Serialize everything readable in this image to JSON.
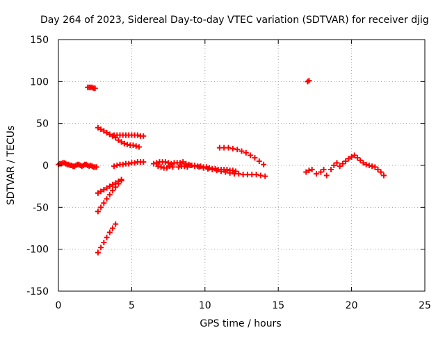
{
  "chart_data": {
    "type": "scatter",
    "title": "Day 264 of 2023, Sidereal Day-to-day VTEC variation (SDTVAR) for receiver djig",
    "xlabel": "GPS time / hours",
    "ylabel": "SDTVAR / TECUs",
    "xlim": [
      0,
      25
    ],
    "ylim": [
      -150,
      150
    ],
    "xticks": [
      "0",
      "5",
      "10",
      "15",
      "20",
      "25"
    ],
    "yticks": [
      "150",
      "100",
      "50",
      "0",
      "-50",
      "-100",
      "-150"
    ],
    "grid": true,
    "marker": "plus",
    "color": "#ff0000",
    "series": [
      {
        "x": [
          0.0,
          0.1,
          0.2,
          0.3,
          0.4,
          0.5,
          0.6,
          0.7,
          0.8,
          0.9,
          1.0,
          1.1,
          1.2,
          1.3,
          1.4,
          1.5,
          1.6,
          1.7,
          1.8,
          1.9,
          2.0,
          2.1,
          2.2,
          2.3,
          2.4,
          2.5,
          2.6,
          2.0,
          2.1,
          2.2,
          2.3,
          2.4,
          2.5,
          2.7,
          2.9,
          3.1,
          3.3,
          3.5,
          3.7,
          3.9,
          4.1,
          4.3,
          4.5,
          4.7,
          4.9,
          5.1,
          5.3,
          5.5,
          3.8,
          4.0,
          4.2,
          4.4,
          4.6,
          4.8,
          5.0,
          5.2,
          5.4,
          5.6,
          5.8,
          2.7,
          2.9,
          3.1,
          3.3,
          3.5,
          3.7,
          3.9,
          4.1,
          4.3,
          2.7,
          2.9,
          3.1,
          3.3,
          3.5,
          3.7,
          3.9,
          4.1,
          4.3,
          2.7,
          2.9,
          3.1,
          3.3,
          3.5,
          3.7,
          3.9,
          3.8,
          4.0,
          4.2,
          4.4,
          4.6,
          4.8,
          5.0,
          5.2,
          5.4,
          5.6,
          5.8,
          6.5,
          6.7,
          6.9,
          7.1,
          7.3,
          7.5,
          7.7,
          7.9,
          8.1,
          8.3,
          8.5,
          8.7,
          8.9,
          9.1,
          9.3,
          9.5,
          9.7,
          9.9,
          10.1,
          10.3,
          10.5,
          10.7,
          10.9,
          11.1,
          11.3,
          11.5,
          11.7,
          11.9,
          12.1,
          6.8,
          7.0,
          7.2,
          7.4,
          7.6,
          7.8,
          8.2,
          8.4,
          8.6,
          8.8,
          9.0,
          9.3,
          9.6,
          9.9,
          10.2,
          10.5,
          10.8,
          11.1,
          11.4,
          11.7,
          12.0,
          12.3,
          12.6,
          12.9,
          13.2,
          13.5,
          13.8,
          14.1,
          11.0,
          11.3,
          11.6,
          11.9,
          12.2,
          12.5,
          12.8,
          13.1,
          13.4,
          13.7,
          14.0,
          17.0,
          17.1,
          16.9,
          17.1,
          17.3,
          17.6,
          17.9,
          18.1,
          18.3,
          18.6,
          18.8,
          19.0,
          19.2,
          19.4,
          19.6,
          19.8,
          20.0,
          20.2,
          20.4,
          20.6,
          20.8,
          21.0,
          21.2,
          21.4,
          21.6,
          21.8,
          22.0,
          22.2
        ],
        "y": [
          1,
          2,
          2,
          3,
          3,
          2,
          1,
          1,
          0,
          0,
          -1,
          -1,
          0,
          1,
          1,
          0,
          -1,
          0,
          1,
          1,
          0,
          -1,
          0,
          -1,
          -2,
          -2,
          -2,
          93,
          93,
          93,
          93,
          92,
          92,
          45,
          43,
          41,
          39,
          37,
          35,
          33,
          30,
          28,
          26,
          25,
          24,
          24,
          23,
          22,
          36,
          36,
          36,
          36,
          36,
          36,
          36,
          36,
          36,
          35,
          35,
          -33,
          -31,
          -29,
          -27,
          -25,
          -23,
          -21,
          -19,
          -17,
          -55,
          -50,
          -45,
          -40,
          -35,
          -30,
          -26,
          -22,
          -18,
          -104,
          -98,
          -92,
          -86,
          -80,
          -75,
          -70,
          -1,
          0,
          1,
          1,
          2,
          2,
          3,
          3,
          4,
          4,
          4,
          2,
          3,
          4,
          4,
          4,
          3,
          2,
          3,
          3,
          3,
          4,
          2,
          1,
          0,
          0,
          -1,
          -1,
          -2,
          -2,
          -3,
          -4,
          -4,
          -5,
          -5,
          -5,
          -5,
          -6,
          -6,
          -7,
          -1,
          -2,
          -3,
          -3,
          -1,
          -2,
          -2,
          -1,
          -1,
          -2,
          0,
          -1,
          -2,
          -3,
          -4,
          -5,
          -6,
          -7,
          -8,
          -9,
          -10,
          -10,
          -11,
          -11,
          -11,
          -11,
          -12,
          -13,
          21,
          21,
          21,
          20,
          19,
          17,
          15,
          12,
          9,
          5,
          1,
          100,
          101,
          -8,
          -6,
          -5,
          -10,
          -8,
          -5,
          -12,
          -5,
          0,
          3,
          -1,
          2,
          5,
          8,
          10,
          12,
          9,
          6,
          3,
          1,
          0,
          -1,
          -2,
          -5,
          -8,
          -12
        ]
      }
    ]
  }
}
